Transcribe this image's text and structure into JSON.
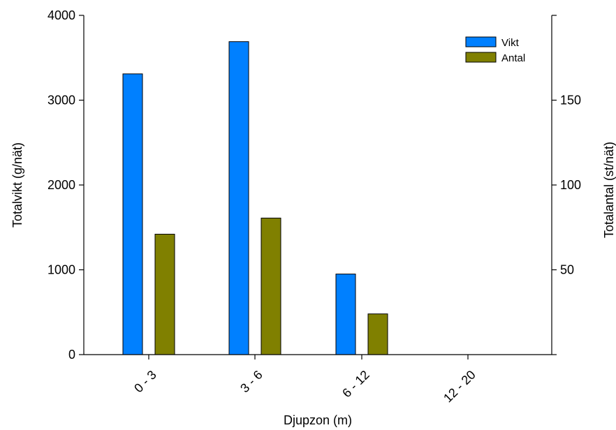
{
  "chart_data": {
    "type": "bar",
    "categories": [
      "0 - 3",
      "3 - 6",
      "6 - 12",
      "12 - 20"
    ],
    "series": [
      {
        "name": "Vikt",
        "axis": "left",
        "color": "#0080ff",
        "values": [
          3310,
          3690,
          950,
          0
        ]
      },
      {
        "name": "Antal",
        "axis": "right",
        "color": "#808000",
        "values": [
          71,
          80.5,
          24,
          0
        ]
      }
    ],
    "xlabel": "Djupzon (m)",
    "ylabel": "Totalvikt (g/nät)",
    "y2label": "Totalantal (st/nät)",
    "ylim": [
      0,
      4000
    ],
    "y2lim": [
      0,
      200
    ],
    "yticks": [
      0,
      1000,
      2000,
      3000,
      4000
    ],
    "y2ticks": [
      50,
      100,
      150
    ],
    "grid": false,
    "legend": "top-right"
  }
}
